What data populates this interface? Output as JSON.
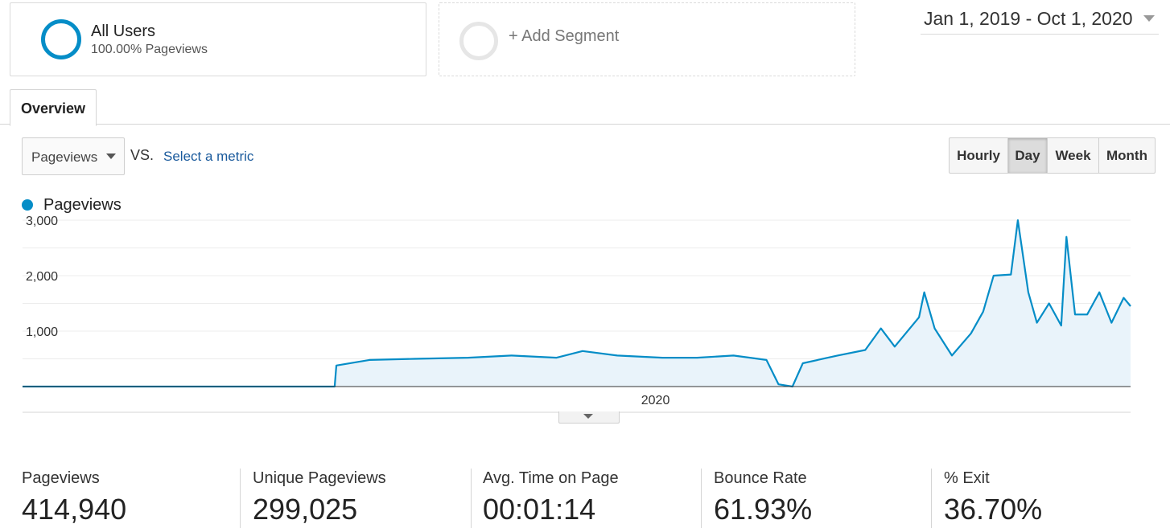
{
  "segments": [
    {
      "title": "All Users",
      "subtitle": "100.00% Pageviews"
    },
    {
      "title": "+ Add Segment"
    }
  ],
  "date_range": "Jan 1, 2019 - Oct 1, 2020",
  "tabs": [
    {
      "label": "Overview"
    }
  ],
  "metric_selector": {
    "selected": "Pageviews",
    "vs": "VS.",
    "select_metric": "Select a metric"
  },
  "granularity": {
    "options": [
      "Hourly",
      "Day",
      "Week",
      "Month"
    ],
    "selected": "Day"
  },
  "legend": {
    "series_label": "Pageviews",
    "color": "#058dc7"
  },
  "chart_data": {
    "type": "area",
    "series": [
      {
        "name": "Pageviews",
        "color": "#058dc7"
      }
    ],
    "x_range": [
      "2019-01-01",
      "2020-10-01"
    ],
    "x_tick_labels": [
      {
        "label": "2020",
        "date": "2020-01-01"
      }
    ],
    "y_tick_labels": [
      "3,000",
      "2,000",
      "1,000"
    ],
    "ylim": [
      0,
      3000
    ],
    "grid": true,
    "points": [
      [
        "2019-01-01",
        0
      ],
      [
        "2019-06-30",
        0
      ],
      [
        "2019-07-01",
        380
      ],
      [
        "2019-07-20",
        480
      ],
      [
        "2019-08-15",
        500
      ],
      [
        "2019-09-15",
        520
      ],
      [
        "2019-10-10",
        560
      ],
      [
        "2019-11-05",
        520
      ],
      [
        "2019-11-20",
        640
      ],
      [
        "2019-12-10",
        560
      ],
      [
        "2020-01-05",
        520
      ],
      [
        "2020-01-25",
        520
      ],
      [
        "2020-02-15",
        560
      ],
      [
        "2020-03-05",
        480
      ],
      [
        "2020-03-12",
        40
      ],
      [
        "2020-03-20",
        0
      ],
      [
        "2020-03-26",
        420
      ],
      [
        "2020-04-15",
        560
      ],
      [
        "2020-05-01",
        660
      ],
      [
        "2020-05-10",
        1050
      ],
      [
        "2020-05-18",
        720
      ],
      [
        "2020-06-01",
        1250
      ],
      [
        "2020-06-04",
        1700
      ],
      [
        "2020-06-10",
        1050
      ],
      [
        "2020-06-20",
        560
      ],
      [
        "2020-07-01",
        960
      ],
      [
        "2020-07-08",
        1350
      ],
      [
        "2020-07-14",
        2000
      ],
      [
        "2020-07-24",
        2020
      ],
      [
        "2020-07-28",
        3000
      ],
      [
        "2020-08-03",
        1700
      ],
      [
        "2020-08-08",
        1150
      ],
      [
        "2020-08-15",
        1500
      ],
      [
        "2020-08-22",
        1100
      ],
      [
        "2020-08-25",
        2700
      ],
      [
        "2020-08-30",
        1300
      ],
      [
        "2020-09-06",
        1300
      ],
      [
        "2020-09-13",
        1700
      ],
      [
        "2020-09-20",
        1150
      ],
      [
        "2020-09-27",
        1600
      ],
      [
        "2020-10-01",
        1450
      ]
    ]
  },
  "scorecards": [
    {
      "label": "Pageviews",
      "value": "414,940"
    },
    {
      "label": "Unique Pageviews",
      "value": "299,025"
    },
    {
      "label": "Avg. Time on Page",
      "value": "00:01:14"
    },
    {
      "label": "Bounce Rate",
      "value": "61.93%"
    },
    {
      "label": "% Exit",
      "value": "36.70%"
    }
  ]
}
